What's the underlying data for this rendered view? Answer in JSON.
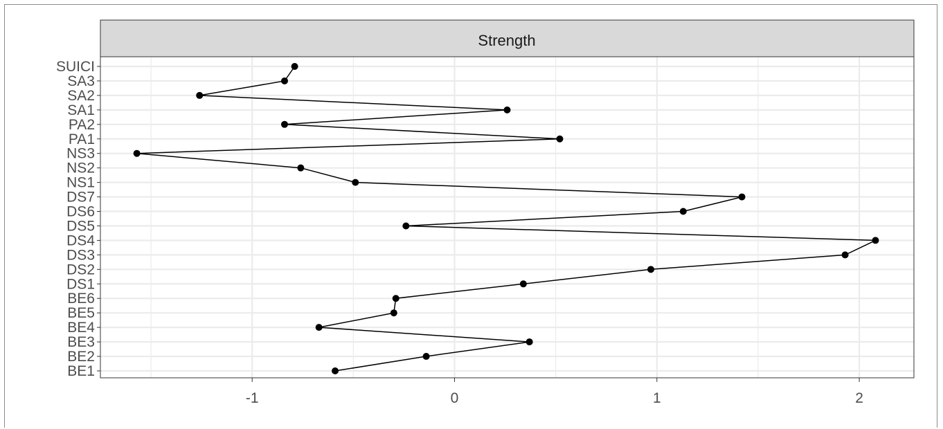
{
  "chart_data": {
    "type": "line",
    "facet_title": "Strength",
    "xlabel": "",
    "ylabel": "",
    "xlim": [
      -1.75,
      2.27
    ],
    "x_ticks": [
      -1,
      0,
      1,
      2
    ],
    "x_tick_labels": [
      "-1",
      "0",
      "1",
      "2"
    ],
    "x_minor_ticks": [
      -1.5,
      -0.5,
      0.5,
      1.5
    ],
    "categories": [
      "BE1",
      "BE2",
      "BE3",
      "BE4",
      "BE5",
      "BE6",
      "DS1",
      "DS2",
      "DS3",
      "DS4",
      "DS5",
      "DS6",
      "DS7",
      "NS1",
      "NS2",
      "NS3",
      "PA1",
      "PA2",
      "SA1",
      "SA2",
      "SA3",
      "SUICI"
    ],
    "values": [
      -0.59,
      -0.14,
      0.37,
      -0.67,
      -0.3,
      -0.29,
      0.34,
      0.97,
      1.93,
      2.08,
      -0.24,
      1.13,
      1.42,
      -0.49,
      -0.76,
      -1.57,
      0.52,
      -0.84,
      0.26,
      -1.26,
      -0.84,
      -0.79
    ],
    "grid": true,
    "legend": "none",
    "colors": {
      "line": "#000000",
      "point": "#000000",
      "grid": "#ebebeb",
      "strip_fill": "#d9d9d9",
      "panel_border": "#333333",
      "tick_text": "#4d4d4d",
      "strip_text": "#1a1a1a"
    }
  }
}
